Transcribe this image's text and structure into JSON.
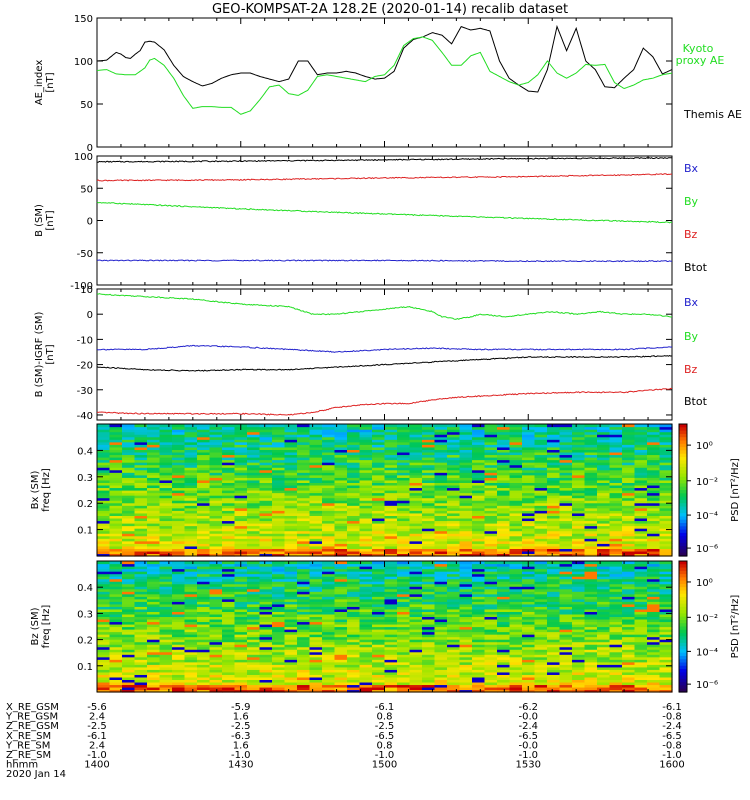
{
  "title": "GEO-KOMPSAT-2A 128.2E (2020-01-14) recalib dataset",
  "colors": {
    "black": "#000000",
    "green": "#22dd22",
    "red": "#dd2222",
    "blue": "#2222cc"
  },
  "chart_data": [
    {
      "type": "line",
      "panel": "ae",
      "ylabel": [
        "AE_index",
        "[nT]"
      ],
      "ylim": [
        0,
        150
      ],
      "yticks": [
        0,
        50,
        100,
        150
      ],
      "legend": [
        {
          "label": "Kyoto",
          "color": "green"
        },
        {
          "label": "proxy AE",
          "color": "green"
        },
        {
          "label": "Themis AE",
          "color": "black"
        }
      ],
      "series": [
        {
          "name": "Themis AE",
          "color": "black",
          "x": [
            0,
            2,
            4,
            5,
            6,
            7,
            8,
            9,
            10,
            11,
            12,
            14,
            16,
            18,
            20,
            22,
            24,
            26,
            28,
            30,
            32,
            34,
            36,
            38,
            40,
            42,
            44,
            46,
            48,
            50,
            52,
            54,
            56,
            58,
            60,
            62,
            64,
            66,
            68,
            70,
            72,
            74,
            76,
            78,
            80,
            82,
            84,
            86,
            88,
            90,
            92,
            94,
            96,
            98,
            100,
            102,
            104,
            106,
            108,
            110,
            112,
            114,
            116,
            118,
            120
          ],
          "y": [
            100,
            101,
            110,
            108,
            104,
            103,
            108,
            112,
            122,
            123,
            122,
            113,
            95,
            82,
            76,
            71,
            74,
            80,
            84,
            86,
            86,
            82,
            79,
            76,
            79,
            100,
            100,
            84,
            86,
            86,
            88,
            86,
            82,
            79,
            80,
            88,
            115,
            125,
            128,
            133,
            130,
            120,
            140,
            136,
            138,
            135,
            100,
            80,
            72,
            65,
            64,
            90,
            140,
            112,
            138,
            100,
            90,
            70,
            69,
            80,
            90,
            115,
            105,
            85,
            90
          ]
        },
        {
          "name": "Kyoto proxy AE",
          "color": "green",
          "x": [
            0,
            2,
            4,
            6,
            8,
            10,
            11,
            12,
            14,
            16,
            18,
            20,
            22,
            24,
            26,
            28,
            30,
            32,
            34,
            36,
            38,
            40,
            42,
            44,
            46,
            48,
            50,
            52,
            54,
            56,
            58,
            60,
            62,
            64,
            66,
            68,
            70,
            72,
            74,
            76,
            78,
            80,
            82,
            84,
            86,
            88,
            90,
            92,
            94,
            96,
            98,
            100,
            102,
            104,
            106,
            108,
            110,
            112,
            114,
            116,
            118,
            120
          ],
          "y": [
            89,
            90,
            85,
            84,
            84,
            92,
            101,
            103,
            95,
            80,
            60,
            45,
            47,
            47,
            46,
            46,
            38,
            42,
            55,
            70,
            72,
            62,
            60,
            66,
            82,
            84,
            82,
            80,
            78,
            76,
            82,
            84,
            95,
            118,
            126,
            128,
            124,
            110,
            95,
            95,
            106,
            110,
            88,
            82,
            76,
            72,
            75,
            84,
            100,
            86,
            80,
            86,
            96,
            95,
            96,
            75,
            68,
            72,
            78,
            80,
            84,
            86
          ]
        }
      ]
    },
    {
      "type": "line",
      "panel": "b",
      "ylabel": [
        "B (SM)",
        "[nT]"
      ],
      "ylim": [
        -100,
        100
      ],
      "yticks": [
        -100,
        -50,
        0,
        50,
        100
      ],
      "legend": [
        {
          "label": "Bx",
          "color": "blue"
        },
        {
          "label": "By",
          "color": "green"
        },
        {
          "label": "Bz",
          "color": "red"
        },
        {
          "label": "Btot",
          "color": "black"
        }
      ],
      "series": [
        {
          "name": "Btot",
          "color": "black",
          "x": [
            0,
            30,
            60,
            90,
            120
          ],
          "y": [
            91,
            92,
            94,
            96,
            97
          ]
        },
        {
          "name": "Bz",
          "color": "red",
          "x": [
            0,
            30,
            60,
            90,
            120
          ],
          "y": [
            62,
            63,
            66,
            68,
            72
          ]
        },
        {
          "name": "By",
          "color": "green",
          "x": [
            0,
            30,
            60,
            90,
            120
          ],
          "y": [
            28,
            18,
            10,
            3,
            -3
          ]
        },
        {
          "name": "Bx",
          "color": "blue",
          "x": [
            0,
            30,
            60,
            90,
            120
          ],
          "y": [
            -62,
            -62,
            -62,
            -63,
            -63
          ]
        }
      ]
    },
    {
      "type": "line",
      "panel": "db",
      "ylabel": [
        "B (SM)-IGRF (SM)",
        "[nT]"
      ],
      "ylim": [
        -42,
        10
      ],
      "yticks": [
        -40,
        -30,
        -20,
        -10,
        0,
        10
      ],
      "legend": [
        {
          "label": "Bx",
          "color": "blue"
        },
        {
          "label": "By",
          "color": "green"
        },
        {
          "label": "Bz",
          "color": "red"
        },
        {
          "label": "Btot",
          "color": "black"
        }
      ],
      "series": [
        {
          "name": "By",
          "color": "green",
          "x": [
            0,
            10,
            20,
            30,
            40,
            45,
            50,
            55,
            60,
            65,
            70,
            72,
            75,
            78,
            80,
            85,
            90,
            95,
            100,
            105,
            110,
            115,
            120
          ],
          "y": [
            8,
            7,
            6,
            4,
            3,
            0,
            0,
            1,
            2,
            3,
            1,
            -1,
            -2,
            -1,
            0,
            -1,
            0,
            1,
            0,
            1,
            0,
            0,
            -1
          ]
        },
        {
          "name": "Bx",
          "color": "blue",
          "x": [
            0,
            10,
            20,
            30,
            40,
            50,
            60,
            70,
            80,
            90,
            100,
            110,
            120
          ],
          "y": [
            -14,
            -14,
            -12.5,
            -13,
            -14,
            -15,
            -14,
            -13.5,
            -14,
            -14,
            -14,
            -14,
            -13
          ]
        },
        {
          "name": "Btot",
          "color": "black",
          "x": [
            0,
            10,
            20,
            30,
            40,
            50,
            60,
            70,
            80,
            90,
            100,
            110,
            120
          ],
          "y": [
            -21,
            -22,
            -22.5,
            -22,
            -22,
            -21,
            -20,
            -19,
            -18,
            -17,
            -17,
            -17,
            -16.5
          ]
        },
        {
          "name": "Bz",
          "color": "red",
          "x": [
            0,
            10,
            20,
            30,
            40,
            45,
            50,
            55,
            60,
            65,
            70,
            75,
            80,
            90,
            100,
            110,
            120
          ],
          "y": [
            -39,
            -39.5,
            -39.5,
            -39.5,
            -40,
            -39,
            -37,
            -36,
            -35.5,
            -35.5,
            -34,
            -33,
            -32.5,
            -31.5,
            -31,
            -31,
            -29.5
          ]
        }
      ]
    },
    {
      "type": "heatmap",
      "panel": "bx-spec",
      "ylabel": [
        "Bx (SM)",
        "freq [Hz]"
      ],
      "ylim": [
        0,
        0.5
      ],
      "yticks": [
        0.1,
        0.2,
        0.3,
        0.4
      ],
      "colorbar_label": "PSD [nT²/Hz]",
      "colorbar_ticks": [
        "10⁰",
        "10⁻²",
        "10⁻⁴",
        "10⁻⁶"
      ]
    },
    {
      "type": "heatmap",
      "panel": "bz-spec",
      "ylabel": [
        "Bz (SM)",
        "freq [Hz]"
      ],
      "ylim": [
        0,
        0.5
      ],
      "yticks": [
        0.1,
        0.2,
        0.3,
        0.4
      ],
      "colorbar_label": "PSD [nT²/Hz]",
      "colorbar_ticks": [
        "10⁰",
        "10⁻²",
        "10⁻⁴",
        "10⁻⁶"
      ]
    }
  ],
  "x_axis": {
    "xlim": [
      0,
      120
    ],
    "tick_minutes": [
      0,
      30,
      60,
      90,
      120
    ],
    "rows": [
      {
        "label": "X_RE_GSM",
        "values": [
          "-5.6",
          "-5.9",
          "-6.1",
          "-6.2",
          "-6.1"
        ]
      },
      {
        "label": "Y_RE_GSM",
        "values": [
          "2.4",
          "1.6",
          "0.8",
          "-0.0",
          "-0.8"
        ]
      },
      {
        "label": "Z_RE_GSM",
        "values": [
          "-2.5",
          "-2.5",
          "-2.5",
          "-2.4",
          "-2.4"
        ]
      },
      {
        "label": "X_RE_SM",
        "values": [
          "-6.1",
          "-6.3",
          "-6.5",
          "-6.5",
          "-6.5"
        ]
      },
      {
        "label": "Y_RE_SM",
        "values": [
          "2.4",
          "1.6",
          "0.8",
          "-0.0",
          "-0.8"
        ]
      },
      {
        "label": "Z_RE_SM",
        "values": [
          "-1.0",
          "-1.0",
          "-1.0",
          "-1.0",
          "-1.0"
        ]
      },
      {
        "label": "hhmm",
        "values": [
          "1400",
          "1430",
          "1500",
          "1530",
          "1600"
        ]
      }
    ],
    "date": "2020 Jan 14"
  }
}
